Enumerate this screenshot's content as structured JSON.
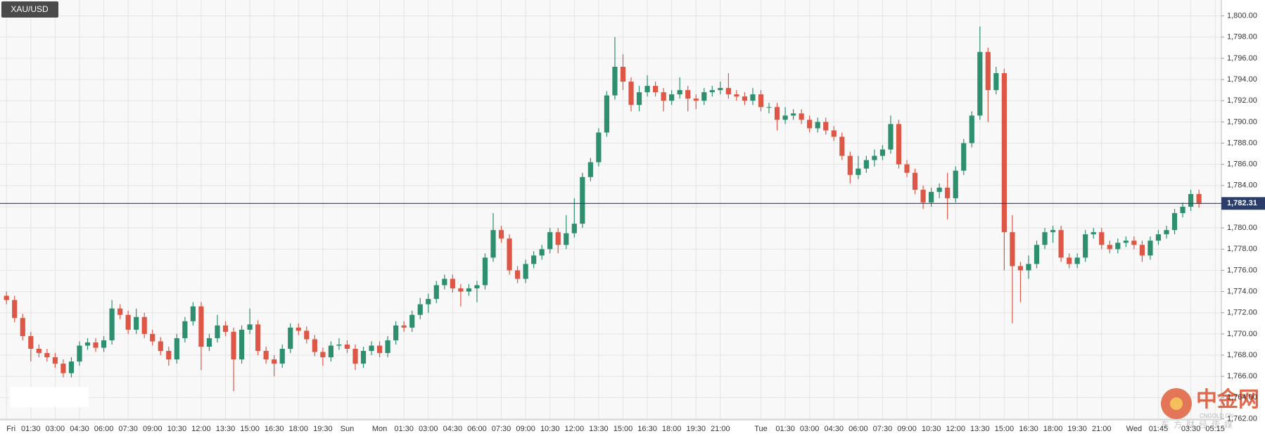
{
  "chart_data": {
    "type": "candlestick",
    "title": "XAU/USD",
    "categories": [
      "Fri",
      null,
      null,
      "01:30",
      null,
      null,
      "03:00",
      null,
      null,
      "04:30",
      null,
      null,
      "06:00",
      null,
      null,
      "07:30",
      null,
      null,
      "09:00",
      null,
      null,
      "10:30",
      null,
      null,
      "12:00",
      null,
      null,
      "13:30",
      null,
      null,
      "15:00",
      null,
      null,
      "16:30",
      null,
      null,
      "18:00",
      null,
      null,
      "19:30",
      null,
      null,
      "Sun",
      null,
      null,
      null,
      "Mon",
      null,
      null,
      "01:30",
      null,
      null,
      "03:00",
      null,
      null,
      "04:30",
      null,
      null,
      "06:00",
      null,
      null,
      "07:30",
      null,
      null,
      "09:00",
      null,
      null,
      "10:30",
      null,
      null,
      "12:00",
      null,
      null,
      "13:30",
      null,
      null,
      "15:00",
      null,
      null,
      "16:30",
      null,
      null,
      "18:00",
      null,
      null,
      "19:30",
      null,
      null,
      "21:00",
      null,
      null,
      null,
      null,
      "Tue",
      null,
      null,
      "01:30",
      null,
      null,
      "03:00",
      null,
      null,
      "04:30",
      null,
      null,
      "06:00",
      null,
      null,
      "07:30",
      null,
      null,
      "09:00",
      null,
      null,
      "10:30",
      null,
      null,
      "12:00",
      null,
      null,
      "13:30",
      null,
      null,
      "15:00",
      null,
      null,
      "16:30",
      null,
      null,
      "18:00",
      null,
      null,
      "19:30",
      null,
      null,
      "21:00",
      null,
      null,
      null,
      "Wed",
      null,
      null,
      "01:45",
      null,
      null,
      null,
      "03:30",
      null,
      null,
      "05:15"
    ],
    "open": [
      1773.6,
      1773.2,
      1771.5,
      1769.8,
      1768.6,
      1768.2,
      1767.8,
      1767.2,
      1766.3,
      1767.4,
      1768.9,
      1769.2,
      1768.7,
      1769.4,
      1772.4,
      1771.8,
      1770.4,
      1771.6,
      1770.0,
      1769.3,
      1768.4,
      1767.6,
      1769.6,
      1771.2,
      1772.6,
      1768.8,
      1769.6,
      1770.8,
      1770.2,
      1767.6,
      1770.4,
      1770.9,
      1768.4,
      1767.6,
      1767.2,
      1768.6,
      1770.6,
      1770.3,
      1769.5,
      1768.3,
      1767.8,
      1768.9,
      1769.0,
      1768.6,
      1767.2,
      1768.4,
      1768.9,
      1768.2,
      1769.4,
      1770.8,
      1770.6,
      1771.8,
      1772.8,
      1773.3,
      1774.6,
      1775.2,
      1774.3,
      1774.0,
      1774.3,
      1774.6,
      1777.2,
      1779.8,
      1779.0,
      1776.0,
      1775.2,
      1776.6,
      1777.4,
      1778.0,
      1779.6,
      1778.4,
      1779.5,
      1780.4,
      1784.8,
      1786.2,
      1789.0,
      1792.5,
      1795.2,
      1793.8,
      1791.6,
      1792.8,
      1793.4,
      1792.8,
      1792.0,
      1792.6,
      1793.0,
      1792.2,
      1792.0,
      1792.8,
      1793.0,
      1793.2,
      1792.6,
      1792.4,
      1792.0,
      1792.6,
      1791.4,
      1791.4,
      1790.2,
      1790.6,
      1790.8,
      1790.2,
      1789.4,
      1790.0,
      1789.2,
      1788.6,
      1786.8,
      1785.0,
      1785.6,
      1786.4,
      1786.8,
      1787.4,
      1789.8,
      1786.0,
      1785.2,
      1783.6,
      1782.4,
      1783.4,
      1783.8,
      1782.8,
      1785.4,
      1788.0,
      1790.6,
      1796.6,
      1793.0,
      1794.6,
      1779.6,
      1776.4,
      1776.0,
      1776.6,
      1778.4,
      1779.6,
      1779.8,
      1777.2,
      1776.6,
      1777.2,
      1779.4,
      1779.6,
      1778.4,
      1778.0,
      1778.6,
      1778.8,
      1778.4,
      1777.4,
      1778.8,
      1779.4,
      1779.8,
      1781.4,
      1782.0,
      1783.2,
      null,
      null
    ],
    "high": [
      1774.0,
      1773.6,
      1771.9,
      1770.2,
      1769.0,
      1768.6,
      1768.2,
      1767.6,
      1767.8,
      1769.3,
      1769.6,
      1769.6,
      1769.8,
      1773.2,
      1772.8,
      1772.2,
      1772.4,
      1772.0,
      1770.4,
      1769.7,
      1768.8,
      1770.0,
      1771.6,
      1773.0,
      1773.0,
      1770.0,
      1771.8,
      1771.2,
      1770.6,
      1770.8,
      1772.4,
      1771.3,
      1768.8,
      1768.0,
      1769.0,
      1771.0,
      1771.0,
      1770.7,
      1769.9,
      1768.7,
      1769.3,
      1769.6,
      1769.4,
      1769.0,
      1768.8,
      1769.3,
      1769.3,
      1769.8,
      1771.2,
      1771.2,
      1772.2,
      1773.4,
      1773.8,
      1775.0,
      1775.6,
      1775.6,
      1774.7,
      1774.7,
      1775.0,
      1777.6,
      1781.4,
      1780.2,
      1779.4,
      1776.4,
      1777.0,
      1777.8,
      1778.4,
      1780.0,
      1780.0,
      1781.2,
      1782.8,
      1785.2,
      1786.6,
      1789.4,
      1792.9,
      1798.0,
      1796.4,
      1794.2,
      1793.4,
      1794.4,
      1793.8,
      1793.2,
      1793.0,
      1794.2,
      1793.4,
      1792.6,
      1793.2,
      1793.4,
      1793.8,
      1794.6,
      1793.0,
      1792.8,
      1793.2,
      1793.0,
      1791.8,
      1791.8,
      1791.4,
      1791.2,
      1791.2,
      1790.6,
      1790.4,
      1790.4,
      1789.6,
      1789.0,
      1787.2,
      1786.8,
      1786.8,
      1787.4,
      1787.8,
      1790.6,
      1790.2,
      1786.4,
      1785.6,
      1784.0,
      1783.8,
      1784.2,
      1785.2,
      1785.8,
      1788.4,
      1791.0,
      1799.0,
      1797.0,
      1795.2,
      1795.0,
      1781.2,
      1776.8,
      1777.4,
      1778.8,
      1780.0,
      1780.2,
      1780.2,
      1777.6,
      1777.6,
      1779.8,
      1780.0,
      1780.0,
      1778.8,
      1779.0,
      1779.2,
      1779.2,
      1778.8,
      1779.2,
      1779.8,
      1780.2,
      1781.8,
      1782.4,
      1783.6,
      1783.6,
      null,
      null
    ],
    "low": [
      1772.8,
      1771.1,
      1769.4,
      1767.4,
      1767.8,
      1767.4,
      1766.8,
      1765.9,
      1765.9,
      1767.0,
      1768.5,
      1768.3,
      1768.3,
      1769.0,
      1771.4,
      1770.0,
      1770.0,
      1769.6,
      1768.9,
      1768.0,
      1767.0,
      1767.2,
      1769.2,
      1770.8,
      1766.6,
      1768.4,
      1769.2,
      1769.8,
      1764.6,
      1767.2,
      1770.0,
      1768.0,
      1767.2,
      1766.0,
      1766.8,
      1768.2,
      1769.9,
      1769.1,
      1767.9,
      1767.0,
      1767.4,
      1768.5,
      1768.2,
      1766.6,
      1766.8,
      1768.0,
      1767.8,
      1767.8,
      1769.0,
      1770.2,
      1770.2,
      1771.4,
      1772.0,
      1772.9,
      1774.2,
      1773.9,
      1772.6,
      1773.6,
      1773.0,
      1774.2,
      1776.8,
      1778.6,
      1775.6,
      1774.8,
      1774.8,
      1776.2,
      1777.0,
      1777.6,
      1777.6,
      1778.0,
      1779.1,
      1780.0,
      1784.4,
      1785.8,
      1788.6,
      1792.1,
      1793.0,
      1791.0,
      1791.0,
      1792.4,
      1792.4,
      1791.0,
      1791.6,
      1792.2,
      1791.0,
      1791.2,
      1791.6,
      1792.4,
      1792.6,
      1792.2,
      1792.0,
      1791.6,
      1791.6,
      1791.0,
      1790.8,
      1789.2,
      1789.8,
      1790.2,
      1789.8,
      1789.0,
      1789.0,
      1788.8,
      1788.2,
      1786.4,
      1784.2,
      1784.6,
      1785.2,
      1785.8,
      1786.4,
      1787.0,
      1785.6,
      1784.8,
      1783.2,
      1781.8,
      1782.0,
      1782.8,
      1780.8,
      1782.4,
      1785.0,
      1787.6,
      1790.2,
      1790.0,
      1792.6,
      1776.0,
      1771.0,
      1773.0,
      1775.2,
      1776.2,
      1778.0,
      1778.6,
      1776.8,
      1776.2,
      1776.2,
      1776.8,
      1779.0,
      1778.0,
      1777.6,
      1777.6,
      1778.2,
      1778.0,
      1776.8,
      1777.0,
      1778.4,
      1779.0,
      1779.4,
      1781.0,
      1781.6,
      1781.9,
      null,
      null
    ],
    "close": [
      1773.2,
      1771.5,
      1769.8,
      1768.6,
      1768.2,
      1767.8,
      1767.2,
      1766.3,
      1767.4,
      1768.9,
      1769.2,
      1768.7,
      1769.4,
      1772.4,
      1771.8,
      1770.4,
      1771.6,
      1770.0,
      1769.3,
      1768.4,
      1767.6,
      1769.6,
      1771.2,
      1772.6,
      1768.8,
      1769.6,
      1770.8,
      1770.2,
      1767.6,
      1770.4,
      1770.9,
      1768.4,
      1767.6,
      1767.2,
      1768.6,
      1770.6,
      1770.3,
      1769.5,
      1768.3,
      1767.8,
      1768.9,
      1769.0,
      1768.6,
      1767.2,
      1768.4,
      1768.9,
      1768.2,
      1769.4,
      1770.8,
      1770.6,
      1771.8,
      1772.8,
      1773.3,
      1774.6,
      1775.2,
      1774.3,
      1774.0,
      1774.3,
      1774.6,
      1777.2,
      1779.8,
      1779.0,
      1776.0,
      1775.2,
      1776.6,
      1777.4,
      1778.0,
      1779.6,
      1778.4,
      1779.5,
      1780.4,
      1784.8,
      1786.2,
      1789.0,
      1792.5,
      1795.2,
      1793.8,
      1791.6,
      1792.8,
      1793.4,
      1792.8,
      1792.0,
      1792.6,
      1793.0,
      1792.2,
      1792.0,
      1792.8,
      1793.0,
      1793.2,
      1792.6,
      1792.4,
      1792.0,
      1792.6,
      1791.4,
      1791.4,
      1790.2,
      1790.6,
      1790.8,
      1790.2,
      1789.4,
      1790.0,
      1789.2,
      1788.6,
      1786.8,
      1785.0,
      1785.6,
      1786.4,
      1786.8,
      1787.4,
      1789.8,
      1786.0,
      1785.2,
      1783.6,
      1782.4,
      1783.4,
      1783.8,
      1782.8,
      1785.4,
      1788.0,
      1790.6,
      1796.6,
      1793.0,
      1794.6,
      1779.6,
      1776.4,
      1776.0,
      1776.6,
      1778.4,
      1779.6,
      1779.8,
      1777.2,
      1776.6,
      1777.2,
      1779.4,
      1779.6,
      1778.4,
      1778.0,
      1778.6,
      1778.8,
      1778.4,
      1777.4,
      1778.8,
      1779.4,
      1779.8,
      1781.4,
      1782.0,
      1783.2,
      1782.3,
      null,
      null
    ],
    "up_color": "#2e8f6f",
    "down_color": "#de5746",
    "ylim": [
      1761.9,
      1801.5
    ],
    "yticks": [
      {
        "value": 1762,
        "label": "1,762.00"
      },
      {
        "value": 1764,
        "label": "1,764.00"
      },
      {
        "value": 1766,
        "label": "1,766.00"
      },
      {
        "value": 1768,
        "label": "1,768.00"
      },
      {
        "value": 1770,
        "label": "1,770.00"
      },
      {
        "value": 1772,
        "label": "1,772.00"
      },
      {
        "value": 1774,
        "label": "1,774.00"
      },
      {
        "value": 1776,
        "label": "1,776.00"
      },
      {
        "value": 1778,
        "label": "1,778.00"
      },
      {
        "value": 1780,
        "label": "1,780.00"
      },
      {
        "value": 1782,
        "label": "1,782.00"
      },
      {
        "value": 1784,
        "label": "1,784.00"
      },
      {
        "value": 1786,
        "label": "1,786.00"
      },
      {
        "value": 1788,
        "label": "1,788.00"
      },
      {
        "value": 1790,
        "label": "1,790.00"
      },
      {
        "value": 1792,
        "label": "1,792.00"
      },
      {
        "value": 1794,
        "label": "1,794.00"
      },
      {
        "value": 1796,
        "label": "1,796.00"
      },
      {
        "value": 1798,
        "label": "1,798.00"
      },
      {
        "value": 1800,
        "label": "1,800.00"
      }
    ],
    "grid": true,
    "last_price": {
      "value": 1782.31,
      "label": "1,782.31",
      "color": "#2b3d6b"
    },
    "watermark": {
      "name": "中金网",
      "site": "CNGOLD.CN",
      "tagline": "东方财经传媒"
    }
  }
}
